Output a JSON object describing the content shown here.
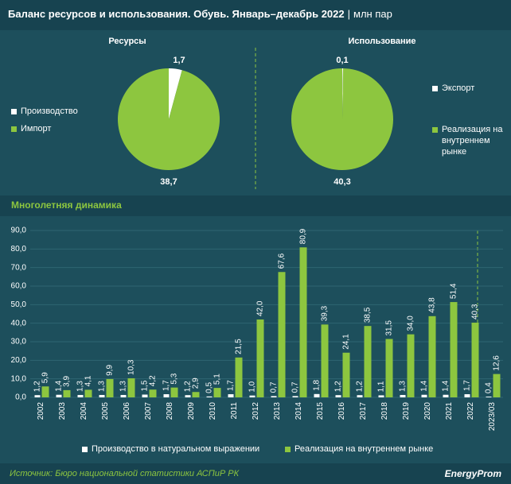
{
  "title": "Баланс ресурсов и использования. Обувь. Январь–декабрь 2022",
  "unit": "млн пар",
  "source": "Источник: Бюро национальной статистики АСПиР РК",
  "logo": "EnergyProm",
  "chart_data": [
    {
      "type": "pie",
      "title": "Ресурсы",
      "labels": [
        "Производство",
        "Импорт"
      ],
      "values": [
        1.7,
        38.7
      ],
      "value_labels": [
        "1,7",
        "38,7"
      ],
      "colors": [
        "#ffffff",
        "#8dc63f"
      ]
    },
    {
      "type": "pie",
      "title": "Использование",
      "labels": [
        "Экспорт",
        "Реализация на внутреннем рынке"
      ],
      "values": [
        0.1,
        40.3
      ],
      "value_labels": [
        "0,1",
        "40,3"
      ],
      "colors": [
        "#ffffff",
        "#8dc63f"
      ]
    },
    {
      "type": "bar",
      "title": "Многолетняя динамика",
      "categories": [
        "2002",
        "2003",
        "2004",
        "2005",
        "2006",
        "2007",
        "2008",
        "2009",
        "2010",
        "2011",
        "2012",
        "2013",
        "2014",
        "2015",
        "2016",
        "2017",
        "2018",
        "2019",
        "2020",
        "2021",
        "2022",
        "2023/03"
      ],
      "series": [
        {
          "name": "Производство в натуральном выражении",
          "color": "#ffffff",
          "values": [
            1.2,
            1.4,
            1.3,
            1.3,
            1.3,
            1.5,
            1.7,
            1.2,
            0.5,
            1.7,
            1.0,
            0.7,
            0.7,
            1.8,
            1.2,
            1.2,
            1.1,
            1.3,
            1.4,
            1.4,
            1.7,
            0.4
          ],
          "value_labels": [
            "1,2",
            "1,4",
            "1,3",
            "1,3",
            "1,3",
            "1,5",
            "1,7",
            "1,2",
            "0,5",
            "1,7",
            "1,0",
            "0,7",
            "0,7",
            "1,8",
            "1,2",
            "1,2",
            "1,1",
            "1,3",
            "1,4",
            "1,4",
            "1,7",
            "0,4"
          ]
        },
        {
          "name": "Реализация на внутреннем рынке",
          "color": "#8dc63f",
          "values": [
            5.9,
            3.9,
            4.1,
            9.9,
            10.3,
            4.2,
            5.3,
            2.9,
            5.1,
            21.5,
            42.0,
            67.6,
            80.9,
            39.3,
            24.1,
            38.5,
            31.5,
            34.0,
            43.8,
            51.4,
            40.3,
            12.6
          ],
          "value_labels": [
            "5,9",
            "3,9",
            "4,1",
            "9,9",
            "10,3",
            "4,2",
            "5,3",
            "2,9",
            "5,1",
            "21,5",
            "42,0",
            "67,6",
            "80,9",
            "39,3",
            "24,1",
            "38,5",
            "31,5",
            "34,0",
            "43,8",
            "51,4",
            "40,3",
            "12,6"
          ]
        }
      ],
      "ylim": [
        0,
        90
      ],
      "yticks": [
        {
          "value": 0,
          "label": "0,0"
        },
        {
          "value": 10,
          "label": "10,0"
        },
        {
          "value": 20,
          "label": "20,0"
        },
        {
          "value": 30,
          "label": "30,0"
        },
        {
          "value": 40,
          "label": "40,0"
        },
        {
          "value": 50,
          "label": "50,0"
        },
        {
          "value": 60,
          "label": "60,0"
        },
        {
          "value": 70,
          "label": "70,0"
        },
        {
          "value": 80,
          "label": "80,0"
        },
        {
          "value": 90,
          "label": "90,0"
        }
      ],
      "grid": true
    }
  ]
}
